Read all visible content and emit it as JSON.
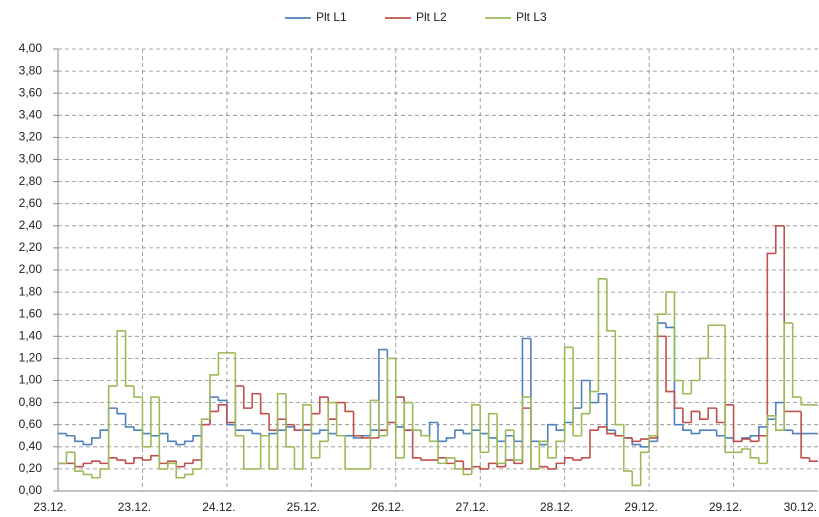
{
  "chart_data": {
    "type": "step",
    "categories": [
      "23.12.",
      null,
      null,
      null,
      null,
      null,
      null,
      null,
      null,
      null,
      "23.12.",
      null,
      null,
      null,
      null,
      null,
      null,
      null,
      null,
      null,
      "24.12.",
      null,
      null,
      null,
      null,
      null,
      null,
      null,
      null,
      null,
      "25.12.",
      null,
      null,
      null,
      null,
      null,
      null,
      null,
      null,
      null,
      "26.12.",
      null,
      null,
      null,
      null,
      null,
      null,
      null,
      null,
      null,
      "27.12.",
      null,
      null,
      null,
      null,
      null,
      null,
      null,
      null,
      null,
      "28.12.",
      null,
      null,
      null,
      null,
      null,
      null,
      null,
      null,
      null,
      "29.12.",
      null,
      null,
      null,
      null,
      null,
      null,
      null,
      null,
      null,
      "29.12.",
      null,
      null,
      null,
      null,
      null,
      null,
      null,
      null,
      null,
      "30.12."
    ],
    "series": [
      {
        "name": "Plt L1",
        "color": "#4f81bd",
        "values": [
          0.52,
          0.5,
          0.45,
          0.42,
          0.48,
          0.55,
          0.75,
          0.7,
          0.58,
          0.55,
          0.52,
          0.5,
          0.52,
          0.45,
          0.42,
          0.45,
          0.5,
          0.6,
          0.85,
          0.82,
          0.6,
          0.55,
          0.55,
          0.52,
          0.5,
          0.52,
          0.55,
          0.58,
          0.55,
          0.55,
          0.52,
          0.55,
          0.52,
          0.5,
          0.5,
          0.48,
          0.5,
          0.55,
          1.28,
          0.62,
          0.58,
          0.55,
          0.55,
          0.5,
          0.62,
          0.45,
          0.48,
          0.55,
          0.52,
          0.55,
          0.52,
          0.48,
          0.45,
          0.5,
          0.45,
          1.38,
          0.45,
          0.42,
          0.6,
          0.55,
          0.62,
          0.75,
          1.0,
          0.8,
          0.88,
          0.55,
          0.5,
          0.48,
          0.42,
          0.4,
          0.45,
          1.52,
          1.48,
          0.6,
          0.55,
          0.52,
          0.55,
          0.55,
          0.5,
          0.48,
          0.45,
          0.48,
          0.5,
          0.58,
          0.65,
          0.8,
          0.55,
          0.52,
          0.52,
          0.52,
          0.52
        ]
      },
      {
        "name": "Plt L2",
        "color": "#c0504d",
        "values": [
          0.25,
          0.25,
          0.22,
          0.25,
          0.27,
          0.25,
          0.3,
          0.28,
          0.25,
          0.3,
          0.28,
          0.32,
          0.25,
          0.27,
          0.22,
          0.25,
          0.28,
          0.6,
          0.72,
          0.78,
          0.62,
          0.95,
          0.75,
          0.88,
          0.7,
          0.55,
          0.65,
          0.6,
          0.55,
          0.6,
          0.7,
          0.85,
          0.65,
          0.8,
          0.72,
          0.5,
          0.48,
          0.48,
          0.55,
          0.62,
          0.85,
          0.55,
          0.3,
          0.28,
          0.28,
          0.3,
          0.25,
          0.27,
          0.2,
          0.22,
          0.2,
          0.25,
          0.22,
          0.28,
          0.25,
          0.75,
          0.2,
          0.22,
          0.2,
          0.25,
          0.3,
          0.28,
          0.3,
          0.55,
          0.58,
          0.52,
          0.5,
          0.48,
          0.45,
          0.47,
          0.48,
          1.4,
          0.9,
          0.75,
          0.62,
          0.72,
          0.65,
          0.75,
          0.62,
          0.78,
          0.45,
          0.47,
          0.45,
          0.5,
          2.15,
          2.4,
          0.72,
          0.72,
          0.3,
          0.27,
          0.27
        ]
      },
      {
        "name": "Plt L3",
        "color": "#9bbb59",
        "values": [
          0.25,
          0.35,
          0.18,
          0.15,
          0.12,
          0.2,
          0.95,
          1.45,
          0.95,
          0.85,
          0.4,
          0.85,
          0.2,
          0.25,
          0.12,
          0.15,
          0.2,
          0.65,
          1.05,
          1.25,
          1.25,
          0.5,
          0.2,
          0.2,
          0.5,
          0.2,
          0.88,
          0.4,
          0.2,
          0.78,
          0.3,
          0.45,
          0.8,
          0.5,
          0.2,
          0.2,
          0.2,
          0.82,
          0.5,
          1.2,
          0.3,
          0.8,
          0.55,
          0.5,
          0.45,
          0.25,
          0.3,
          0.2,
          0.15,
          0.78,
          0.35,
          0.7,
          0.25,
          0.55,
          0.28,
          0.85,
          0.2,
          0.45,
          0.3,
          0.45,
          1.3,
          0.5,
          0.7,
          0.9,
          1.92,
          1.45,
          0.6,
          0.18,
          0.05,
          0.35,
          0.5,
          1.6,
          1.8,
          1.0,
          0.88,
          1.0,
          1.2,
          1.5,
          1.5,
          0.35,
          0.35,
          0.38,
          0.3,
          0.25,
          0.68,
          0.55,
          1.52,
          0.85,
          0.78,
          0.78,
          0.78
        ]
      }
    ],
    "ylim": [
      0,
      4
    ],
    "yticks": [
      {
        "value": 0,
        "label": "0,00"
      },
      {
        "value": 0.2,
        "label": "0,20"
      },
      {
        "value": 0.4,
        "label": "0,40"
      },
      {
        "value": 0.6,
        "label": "0,60"
      },
      {
        "value": 0.8,
        "label": "0,80"
      },
      {
        "value": 1,
        "label": "1,00"
      },
      {
        "value": 1.2,
        "label": "1,20"
      },
      {
        "value": 1.4,
        "label": "1,40"
      },
      {
        "value": 1.6,
        "label": "1,60"
      },
      {
        "value": 1.8,
        "label": "1,80"
      },
      {
        "value": 2,
        "label": "2,00"
      },
      {
        "value": 2.2,
        "label": "2,20"
      },
      {
        "value": 2.4,
        "label": "2,40"
      },
      {
        "value": 2.6,
        "label": "2,60"
      },
      {
        "value": 2.8,
        "label": "2,80"
      },
      {
        "value": 3,
        "label": "3,00"
      },
      {
        "value": 3.2,
        "label": "3,20"
      },
      {
        "value": 3.4,
        "label": "3,40"
      },
      {
        "value": 3.6,
        "label": "3,60"
      },
      {
        "value": 3.8,
        "label": "3,80"
      },
      {
        "value": 4,
        "label": "4,00"
      }
    ],
    "grid": true,
    "legend": "top"
  }
}
